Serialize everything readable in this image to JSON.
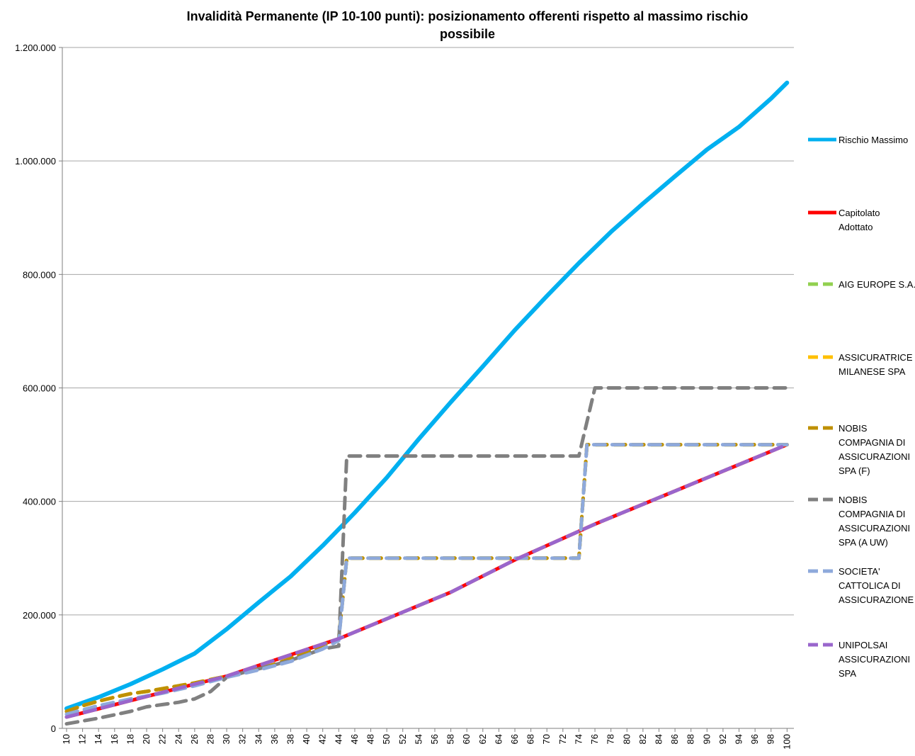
{
  "chart_data": {
    "type": "line",
    "title_lines": [
      "Invalidità Permanente (IP 10-100 punti): posizionamento offerenti rispetto al massimo rischio",
      "possibile"
    ],
    "xlabel": "",
    "ylabel": "",
    "ylim": [
      0,
      1200000
    ],
    "y_ticks": [
      0,
      200000,
      400000,
      600000,
      800000,
      1000000,
      1200000
    ],
    "y_tick_labels": [
      "0",
      "200.000",
      "400.000",
      "600.000",
      "800.000",
      "1.000.000",
      "1.200.000"
    ],
    "x_ticks": [
      10,
      12,
      14,
      16,
      18,
      20,
      22,
      24,
      26,
      28,
      30,
      32,
      34,
      36,
      38,
      40,
      42,
      44,
      46,
      48,
      50,
      52,
      54,
      56,
      58,
      60,
      62,
      64,
      66,
      68,
      70,
      72,
      74,
      76,
      78,
      80,
      82,
      84,
      86,
      88,
      90,
      92,
      94,
      96,
      98,
      100
    ],
    "grid": "horizontal",
    "legend_position": "right",
    "series": [
      {
        "name": "Rischio Massimo",
        "color": "#00b0f0",
        "dash": false,
        "width": 6,
        "points": [
          [
            10,
            35000
          ],
          [
            14,
            55000
          ],
          [
            18,
            78000
          ],
          [
            22,
            104000
          ],
          [
            26,
            132000
          ],
          [
            30,
            175000
          ],
          [
            34,
            222000
          ],
          [
            38,
            268000
          ],
          [
            42,
            322000
          ],
          [
            46,
            380000
          ],
          [
            50,
            442000
          ],
          [
            54,
            510000
          ],
          [
            58,
            575000
          ],
          [
            62,
            638000
          ],
          [
            66,
            702000
          ],
          [
            70,
            762000
          ],
          [
            74,
            820000
          ],
          [
            78,
            875000
          ],
          [
            82,
            925000
          ],
          [
            86,
            973000
          ],
          [
            90,
            1020000
          ],
          [
            94,
            1060000
          ],
          [
            98,
            1110000
          ],
          [
            100,
            1138000
          ]
        ]
      },
      {
        "name": "Capitolato Adottato",
        "color": "#ff0000",
        "dash": false,
        "width": 5,
        "points": [
          [
            10,
            20000
          ],
          [
            26,
            78000
          ],
          [
            30,
            92000
          ],
          [
            44,
            158000
          ],
          [
            58,
            240000
          ],
          [
            66,
            297000
          ],
          [
            76,
            360000
          ],
          [
            100,
            500000
          ]
        ]
      },
      {
        "name": "AIG EUROPE S.A.",
        "color": "#92d050",
        "dash": true,
        "width": 5,
        "points": [
          [
            10,
            30000
          ],
          [
            12,
            40000
          ],
          [
            14,
            48000
          ],
          [
            16,
            55000
          ],
          [
            18,
            61000
          ],
          [
            20,
            65000
          ],
          [
            22,
            70000
          ],
          [
            24,
            75000
          ],
          [
            26,
            80000
          ],
          [
            28,
            86000
          ],
          [
            30,
            92000
          ],
          [
            32,
            98000
          ],
          [
            34,
            105000
          ],
          [
            36,
            113000
          ],
          [
            38,
            123000
          ],
          [
            40,
            135000
          ],
          [
            42,
            147000
          ],
          [
            44,
            158000
          ],
          [
            45,
            300000
          ],
          [
            74,
            300000
          ],
          [
            75,
            500000
          ],
          [
            100,
            500000
          ]
        ]
      },
      {
        "name": "ASSICURATRICE MILANESE SPA",
        "color": "#ffc000",
        "dash": true,
        "width": 5,
        "points": [
          [
            10,
            30000
          ],
          [
            12,
            40000
          ],
          [
            14,
            48000
          ],
          [
            16,
            55000
          ],
          [
            18,
            61000
          ],
          [
            20,
            65000
          ],
          [
            22,
            70000
          ],
          [
            24,
            75000
          ],
          [
            26,
            80000
          ],
          [
            28,
            86000
          ],
          [
            30,
            92000
          ],
          [
            32,
            98000
          ],
          [
            34,
            105000
          ],
          [
            36,
            113000
          ],
          [
            38,
            123000
          ],
          [
            40,
            135000
          ],
          [
            42,
            147000
          ],
          [
            44,
            158000
          ],
          [
            45,
            300000
          ],
          [
            74,
            300000
          ],
          [
            75,
            500000
          ],
          [
            100,
            500000
          ]
        ]
      },
      {
        "name": "NOBIS COMPAGNIA DI ASSICURAZIONI SPA (F)",
        "color": "#bf9000",
        "dash": true,
        "width": 5,
        "points": [
          [
            10,
            30000
          ],
          [
            12,
            40000
          ],
          [
            14,
            48000
          ],
          [
            16,
            55000
          ],
          [
            18,
            61000
          ],
          [
            20,
            65000
          ],
          [
            22,
            70000
          ],
          [
            24,
            75000
          ],
          [
            26,
            80000
          ],
          [
            28,
            86000
          ],
          [
            30,
            92000
          ],
          [
            32,
            98000
          ],
          [
            34,
            105000
          ],
          [
            36,
            113000
          ],
          [
            38,
            123000
          ],
          [
            40,
            135000
          ],
          [
            42,
            147000
          ],
          [
            44,
            158000
          ],
          [
            45,
            300000
          ],
          [
            74,
            300000
          ],
          [
            75,
            500000
          ],
          [
            100,
            500000
          ]
        ]
      },
      {
        "name": "NOBIS COMPAGNIA DI ASSICURAZIONI SPA (A UW)",
        "color": "#808080",
        "dash": true,
        "width": 5,
        "points": [
          [
            10,
            8000
          ],
          [
            14,
            18000
          ],
          [
            16,
            24000
          ],
          [
            18,
            30000
          ],
          [
            20,
            38000
          ],
          [
            22,
            42000
          ],
          [
            24,
            46000
          ],
          [
            26,
            52000
          ],
          [
            28,
            65000
          ],
          [
            30,
            90000
          ],
          [
            32,
            98000
          ],
          [
            34,
            105000
          ],
          [
            36,
            112000
          ],
          [
            38,
            120000
          ],
          [
            40,
            130000
          ],
          [
            42,
            140000
          ],
          [
            44,
            145000
          ],
          [
            45,
            480000
          ],
          [
            74,
            480000
          ],
          [
            76,
            600000
          ],
          [
            100,
            600000
          ]
        ]
      },
      {
        "name": "SOCIETA' CATTOLICA DI ASSICURAZIONE",
        "color": "#8ea9db",
        "dash": true,
        "width": 5,
        "points": [
          [
            10,
            25000
          ],
          [
            14,
            40000
          ],
          [
            18,
            52000
          ],
          [
            22,
            62000
          ],
          [
            26,
            75000
          ],
          [
            30,
            90000
          ],
          [
            34,
            103000
          ],
          [
            38,
            118000
          ],
          [
            42,
            140000
          ],
          [
            44,
            155000
          ],
          [
            45,
            300000
          ],
          [
            74,
            300000
          ],
          [
            75,
            500000
          ],
          [
            100,
            500000
          ]
        ]
      },
      {
        "name": "UNIPOLSAI ASSICURAZIONI SPA",
        "color": "#9966cc",
        "dash": true,
        "width": 5,
        "points": [
          [
            10,
            20000
          ],
          [
            26,
            78000
          ],
          [
            30,
            92000
          ],
          [
            44,
            158000
          ],
          [
            58,
            240000
          ],
          [
            66,
            297000
          ],
          [
            76,
            360000
          ],
          [
            100,
            500000
          ]
        ]
      }
    ],
    "legend_lines": [
      [
        "Rischio Massimo"
      ],
      [
        "Capitolato",
        "Adottato"
      ],
      [
        "AIG EUROPE S.A."
      ],
      [
        "ASSICURATRICE",
        "MILANESE SPA"
      ],
      [
        "NOBIS",
        "COMPAGNIA DI",
        "ASSICURAZIONI",
        "SPA (F)"
      ],
      [
        "NOBIS",
        "COMPAGNIA DI",
        "ASSICURAZIONI",
        "SPA (A UW)"
      ],
      [
        "SOCIETA'",
        "CATTOLICA DI",
        "ASSICURAZIONE"
      ],
      [
        "UNIPOLSAI",
        "ASSICURAZIONI",
        "SPA"
      ]
    ]
  }
}
